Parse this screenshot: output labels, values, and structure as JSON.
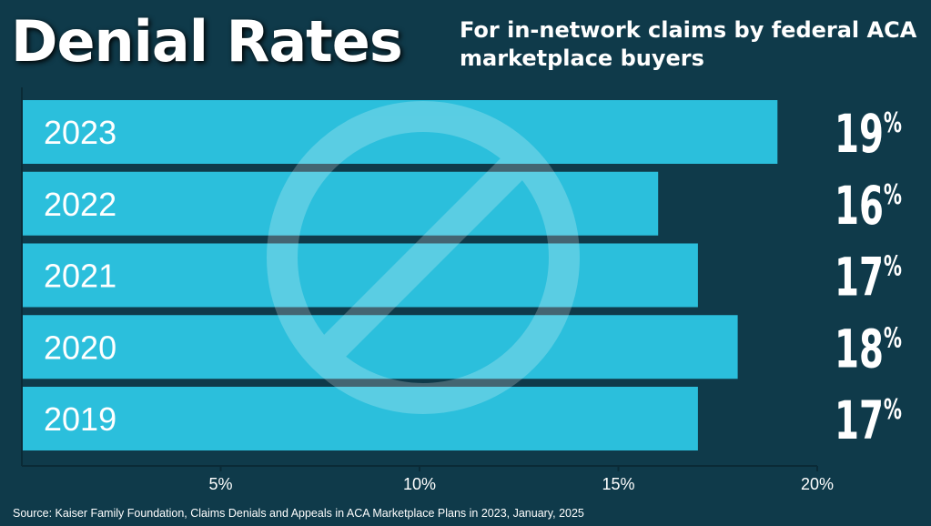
{
  "header": {
    "title": "Denial Rates",
    "subtitle": "For in-network claims by federal ACA marketplace buyers"
  },
  "source": "Source: Kaiser Family Foundation, Claims Denials and Appeals in ACA Marketplace Plans in 2023, January, 2025",
  "colors": {
    "background": "#0f3a4a",
    "bar": "#2bbfdc",
    "watermark": "#ffffff",
    "text": "#ffffff"
  },
  "watermark_icon": "no-sign-icon",
  "chart_data": {
    "type": "bar",
    "orientation": "horizontal",
    "categories": [
      "2023",
      "2022",
      "2021",
      "2020",
      "2019"
    ],
    "values": [
      19,
      16,
      17,
      18,
      17
    ],
    "value_labels": [
      "19",
      "16",
      "17",
      "18",
      "17"
    ],
    "value_suffix": "%",
    "x_ticks": [
      5,
      10,
      15,
      20
    ],
    "x_tick_labels": [
      "5%",
      "10%",
      "15%",
      "20%"
    ],
    "xlim": [
      0,
      20
    ],
    "grid": false,
    "legend": "none"
  }
}
